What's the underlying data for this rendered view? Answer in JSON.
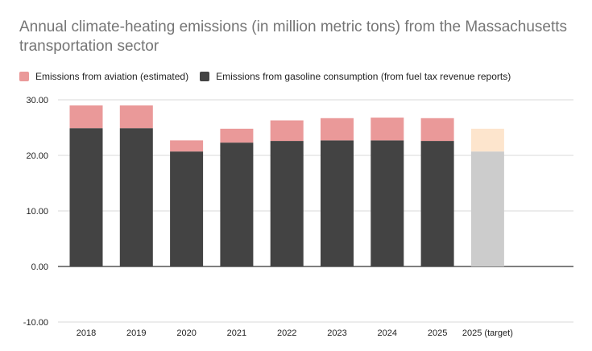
{
  "title": "Annual climate-heating emissions (in million metric tons) from the Massachusetts transportation sector",
  "colors": {
    "aviation": "#ea9999",
    "gasoline": "#434343",
    "target_aviation": "#fde5cd",
    "target_gasoline": "#cccccc",
    "grid": "#d9d9d9",
    "zero_line": "#333333"
  },
  "chart_data": {
    "type": "bar",
    "stacked": true,
    "categories": [
      "2018",
      "2019",
      "2020",
      "2021",
      "2022",
      "2023",
      "2024",
      "2025",
      "2025 (target)"
    ],
    "series": [
      {
        "name": "Emissions from gasoline consumption (from fuel tax revenue reports)",
        "key": "gasoline",
        "values": [
          24.9,
          24.9,
          20.7,
          22.3,
          22.6,
          22.7,
          22.7,
          22.6,
          20.7
        ]
      },
      {
        "name": "Emissions from aviation (estimated)",
        "key": "aviation",
        "values": [
          4.1,
          4.1,
          2.0,
          2.5,
          3.7,
          4.0,
          4.1,
          4.1,
          4.1
        ]
      }
    ],
    "legend_order": [
      "aviation",
      "gasoline"
    ],
    "highlight_category": "2025 (target)",
    "y_ticks": [
      "30.00",
      "20.00",
      "10.00",
      "0.00",
      "-10.00"
    ],
    "ylim": [
      -10,
      30
    ],
    "grid": true,
    "legend_position": "top-left"
  }
}
